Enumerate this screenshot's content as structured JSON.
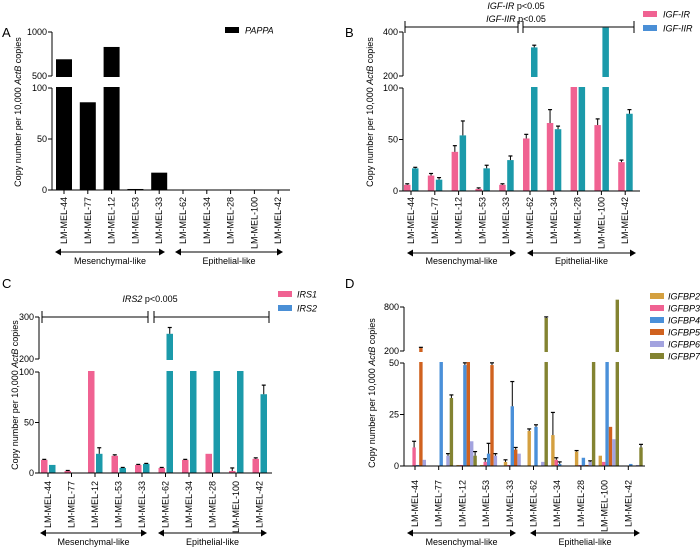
{
  "chart_data": [
    {
      "panel": "A",
      "type": "bar",
      "categories": [
        "LM-MEL-44",
        "LM-MEL-77",
        "LM-MEL-12",
        "LM-MEL-53",
        "LM-MEL-33",
        "LM-MEL-62",
        "LM-MEL-34",
        "LM-MEL-28",
        "LM-MEL-100",
        "LM-MEL-42"
      ],
      "series": [
        {
          "name": "PAPPA",
          "color": "#000000",
          "values": [
            690,
            86,
            830,
            1,
            17,
            0,
            0,
            0.5,
            0.5,
            0
          ],
          "errors": [
            0,
            0,
            0,
            0,
            0,
            0,
            0,
            0,
            0,
            0
          ]
        }
      ],
      "yticks": [
        0,
        50,
        100,
        500,
        1000
      ],
      "axis_break": [
        100,
        500
      ],
      "ylabel": {
        "pre": "Copy number  per 10,000 ",
        "italic": "ActB",
        "post": " copies"
      },
      "groups": [
        "Mesenchymal-like",
        "Epithelial-like"
      ],
      "annotations": [],
      "legend": "top-right"
    },
    {
      "panel": "B",
      "type": "bar",
      "categories": [
        "LM-MEL-44",
        "LM-MEL-77",
        "LM-MEL-12",
        "LM-MEL-53",
        "LM-MEL-33",
        "LM-MEL-62",
        "LM-MEL-34",
        "LM-MEL-28",
        "LM-MEL-100",
        "LM-MEL-42"
      ],
      "series": [
        {
          "name": "IGF-IR",
          "color": "#f06292",
          "legend_color": "#f06292",
          "values": [
            6,
            15,
            38,
            2,
            6,
            51,
            66,
            150,
            64,
            28
          ],
          "errors": [
            1,
            2,
            6,
            1,
            1,
            4,
            13,
            0,
            6,
            2
          ]
        },
        {
          "name": "IGF-IIR",
          "color": "#1b9aaa",
          "legend_color": "#4a8fd6",
          "values": [
            22,
            11,
            54,
            22,
            30,
            330,
            60,
            150,
            420,
            75
          ],
          "errors": [
            1,
            2,
            14,
            3,
            4,
            10,
            3,
            0,
            0,
            4
          ]
        }
      ],
      "yticks": [
        0,
        50,
        100,
        200,
        400
      ],
      "axis_break": [
        100,
        200
      ],
      "ylabel": {
        "pre": "Copy number  per 10,000 ",
        "italic": "ActB",
        "post": " copies"
      },
      "groups": [
        "Mesenchymal-like",
        "Epithelial-like"
      ],
      "annotations": [
        {
          "gene": "IGF-IR",
          "p": " p<0.05"
        },
        {
          "gene": "IGF-IIR",
          "p": " p<0.05"
        }
      ],
      "legend": "top-right"
    },
    {
      "panel": "C",
      "type": "bar",
      "categories": [
        "LM-MEL-44",
        "LM-MEL-77",
        "LM-MEL-12",
        "LM-MEL-53",
        "LM-MEL-33",
        "LM-MEL-62",
        "LM-MEL-34",
        "LM-MEL-28",
        "LM-MEL-100",
        "LM-MEL-42"
      ],
      "series": [
        {
          "name": "IRS1",
          "color": "#f06292",
          "legend_color": "#f06292",
          "values": [
            13,
            2,
            150,
            17,
            8,
            5,
            13,
            19,
            2,
            14
          ],
          "errors": [
            0.5,
            0.5,
            0,
            1,
            0.5,
            0.5,
            0.5,
            0,
            3,
            1
          ]
        },
        {
          "name": "IRS2",
          "color": "#1b9aaa",
          "legend_color": "#4a8fd6",
          "values": [
            8,
            0,
            19,
            5,
            9,
            260,
            150,
            150,
            150,
            78
          ],
          "errors": [
            0,
            0,
            6,
            0.5,
            0.5,
            15,
            0,
            0,
            0,
            9
          ]
        }
      ],
      "yticks": [
        0,
        50,
        100,
        200,
        300
      ],
      "axis_break": [
        100,
        200
      ],
      "ylabel": {
        "pre": "Copy number  per 10,000 ",
        "italic": "ActB",
        "post": " copies"
      },
      "groups": [
        "Mesenchymal-like",
        "Epithelial-like"
      ],
      "annotations": [
        {
          "gene": "IRS2",
          "p": " p<0.005"
        }
      ],
      "legend": "top-right"
    },
    {
      "panel": "D",
      "type": "bar",
      "categories": [
        "LM-MEL-44",
        "LM-MEL-77",
        "LM-MEL-12",
        "LM-MEL-53",
        "LM-MEL-33",
        "LM-MEL-62",
        "LM-MEL-34",
        "LM-MEL-28",
        "LM-MEL-100",
        "LM-MEL-42"
      ],
      "series": [
        {
          "name": "IGFBP2",
          "color": "#d4a040",
          "values": [
            0,
            0,
            0.5,
            0.5,
            2,
            17,
            15,
            7,
            5,
            0
          ],
          "errors": [
            0,
            0,
            0,
            0,
            1,
            1,
            11,
            0.5,
            0,
            0
          ]
        },
        {
          "name": "IGFBP3",
          "color": "#f06292",
          "values": [
            9,
            0,
            0.5,
            2,
            0.5,
            0,
            3,
            0.5,
            2,
            0
          ],
          "errors": [
            3,
            0,
            0,
            1.5,
            0,
            0,
            1,
            0,
            0,
            0
          ]
        },
        {
          "name": "IGFBP4",
          "color": "#4a90d9",
          "values": [
            0.5,
            100,
            49,
            6,
            29,
            19,
            1,
            4,
            100,
            1
          ],
          "errors": [
            0,
            0,
            3,
            5,
            12,
            1,
            1,
            0,
            0,
            0
          ]
        },
        {
          "name": "IGFBP5",
          "color": "#d0621f",
          "values": [
            240,
            0,
            100,
            49,
            8,
            0,
            0,
            0.5,
            19,
            0
          ],
          "errors": [
            10,
            0,
            0,
            3,
            1,
            0,
            0,
            0,
            0,
            0
          ]
        },
        {
          "name": "IGFBP6",
          "color": "#a3a3df",
          "values": [
            3,
            5,
            12,
            5,
            6,
            2,
            0,
            2,
            13,
            0.5
          ],
          "errors": [
            0,
            1,
            0,
            1,
            0,
            0,
            0,
            0.5,
            0,
            0
          ]
        },
        {
          "name": "IGFBP7",
          "color": "#838331",
          "values": [
            0,
            33,
            5,
            0,
            0,
            650,
            0,
            100,
            900,
            9
          ],
          "errors": [
            0,
            1.5,
            2,
            0,
            0,
            15,
            0,
            0,
            0,
            1.5
          ]
        }
      ],
      "yticks": [
        0,
        25,
        50,
        200,
        800
      ],
      "axis_break": [
        50,
        200
      ],
      "ylabel": {
        "pre": "Copy number  per 10,000 ",
        "italic": "ActB",
        "post": " copies"
      },
      "groups": [
        "Mesenchymal-like",
        "Epithelial-like"
      ],
      "annotations": [],
      "legend": "top-right"
    }
  ]
}
